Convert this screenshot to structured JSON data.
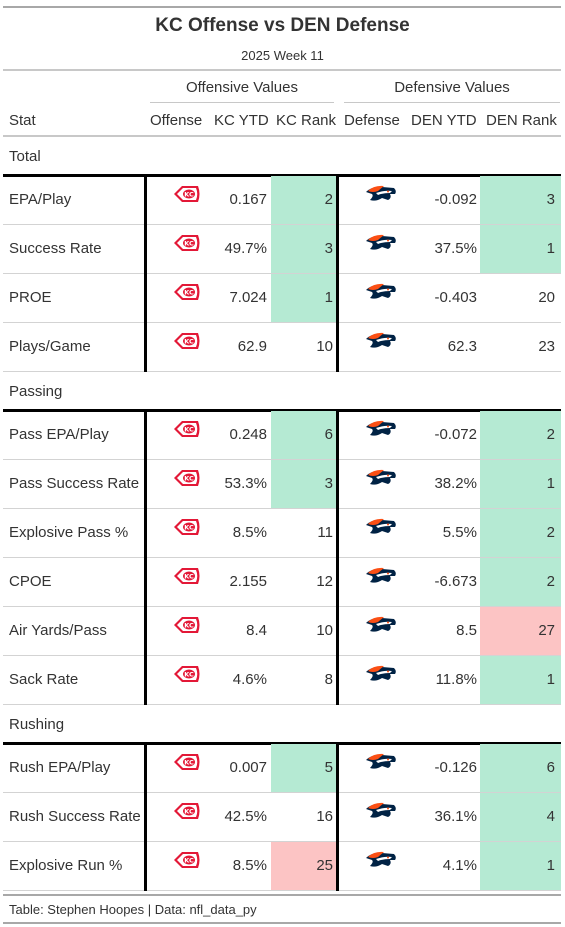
{
  "title": "KC Offense vs DEN Defense",
  "subtitle": "2025 Week 11",
  "spanners": {
    "offense": "Offensive Values",
    "defense": "Defensive Values"
  },
  "columns": {
    "stat": "Stat",
    "offense": "Offense",
    "kc_ytd": "KC YTD",
    "kc_rank": "KC Rank",
    "defense": "Defense",
    "den_ytd": "DEN YTD",
    "den_rank": "DEN Rank"
  },
  "colors": {
    "good": "#b5ead3",
    "bad": "#fcc4c4",
    "kc_red": "#e31837",
    "den_orange": "#fb4f14",
    "den_navy": "#002244"
  },
  "icons": {
    "offense": "chiefs-arrowhead-logo",
    "defense": "broncos-horse-logo"
  },
  "groups": [
    {
      "label": "Total",
      "rows": [
        {
          "stat": "EPA/Play",
          "kc_ytd": "0.167",
          "kc_rank": "2",
          "den_ytd": "-0.092",
          "den_rank": "3"
        },
        {
          "stat": "Success Rate",
          "kc_ytd": "49.7%",
          "kc_rank": "3",
          "den_ytd": "37.5%",
          "den_rank": "1"
        },
        {
          "stat": "PROE",
          "kc_ytd": "7.024",
          "kc_rank": "1",
          "den_ytd": "-0.403",
          "den_rank": "20"
        },
        {
          "stat": "Plays/Game",
          "kc_ytd": "62.9",
          "kc_rank": "10",
          "den_ytd": "62.3",
          "den_rank": "23"
        }
      ]
    },
    {
      "label": "Passing",
      "rows": [
        {
          "stat": "Pass EPA/Play",
          "kc_ytd": "0.248",
          "kc_rank": "6",
          "den_ytd": "-0.072",
          "den_rank": "2"
        },
        {
          "stat": "Pass Success Rate",
          "kc_ytd": "53.3%",
          "kc_rank": "3",
          "den_ytd": "38.2%",
          "den_rank": "1"
        },
        {
          "stat": "Explosive Pass %",
          "kc_ytd": "8.5%",
          "kc_rank": "11",
          "den_ytd": "5.5%",
          "den_rank": "2"
        },
        {
          "stat": "CPOE",
          "kc_ytd": "2.155",
          "kc_rank": "12",
          "den_ytd": "-6.673",
          "den_rank": "2"
        },
        {
          "stat": "Air Yards/Pass",
          "kc_ytd": "8.4",
          "kc_rank": "10",
          "den_ytd": "8.5",
          "den_rank": "27"
        },
        {
          "stat": "Sack Rate",
          "kc_ytd": "4.6%",
          "kc_rank": "8",
          "den_ytd": "11.8%",
          "den_rank": "1"
        }
      ]
    },
    {
      "label": "Rushing",
      "rows": [
        {
          "stat": "Rush EPA/Play",
          "kc_ytd": "0.007",
          "kc_rank": "5",
          "den_ytd": "-0.126",
          "den_rank": "6"
        },
        {
          "stat": "Rush Success Rate",
          "kc_ytd": "42.5%",
          "kc_rank": "16",
          "den_ytd": "36.1%",
          "den_rank": "4"
        },
        {
          "stat": "Explosive Run %",
          "kc_ytd": "8.5%",
          "kc_rank": "25",
          "den_ytd": "4.1%",
          "den_rank": "1"
        }
      ]
    }
  ],
  "footer": "Table: Stephen Hoopes | Data: nfl_data_py"
}
